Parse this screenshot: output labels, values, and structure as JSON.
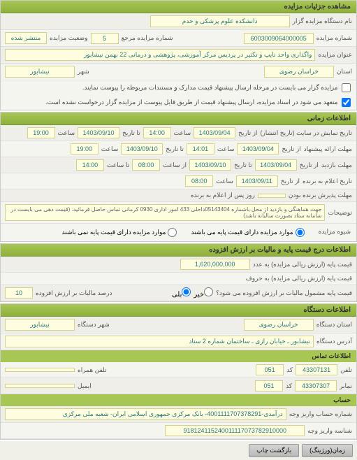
{
  "sections": {
    "details": {
      "title": "مشاهده جزئیات مزایده"
    },
    "timing": {
      "title": "اطلاعات زمانی"
    },
    "price": {
      "title": "اطلاعات درج قیمت پایه و مالیات بر ارزش افزوده"
    },
    "device": {
      "title": "اطلاعات دستگاه"
    },
    "contact": {
      "title": "اطلاعات تماس"
    },
    "account": {
      "title": "حساب"
    }
  },
  "fields": {
    "org_name_label": "نام دستگاه مزایده گزار",
    "org_name": "دانشکده علوم پزشکی و خدم",
    "auction_num_label": "شماره مزایده",
    "auction_num": "6003009064000005",
    "ref_label": "شماره مزایده مرجع",
    "ref": "5",
    "status_label": "وضعیت مزایده",
    "status": "منتشر شده",
    "auction_title_label": "عنوان مزایده",
    "auction_title": "واگذاری واحد تایپ و تکثیر در پردیس مرکز آموزشی، پژوهشی و درمانی 22 بهمن نیشابور",
    "province_label": "استان",
    "province": "خراسان رضوی",
    "city_label": "شهر",
    "city": "نیشابور",
    "chk1": "مزایده گزار می بایست در مرحله ارسال پیشنهاد قیمت مدارک و مستندات مربوطه را پیوست نمایند.",
    "chk2": "متعهد می شود در اسناد مزایده، ارسال پیشنهاد قیمت از طریق فایل پیوست از مزایده گزار درخواست نشده است.",
    "display_date_label": "تاریخ نمایش در سایت (تاریخ انتشار)",
    "from_label": "از تاریخ",
    "to_label": "تا تاریخ",
    "time_label": "ساعت",
    "from_time_label": "از ساعت",
    "to_time_label": "تا ساعت",
    "d1_from": "1403/09/04",
    "d1_ft": "14:00",
    "d1_to": "1403/09/10",
    "d1_tt": "19:00",
    "offer_deadline_label": "مهلت ارائه پیشنهاد",
    "d2_from": "1403/09/04",
    "d2_ft": "14:01",
    "d2_to": "1403/09/10",
    "d2_tt": "19:00",
    "visit_label": "مهلت بازدید",
    "d3_from": "1403/09/04",
    "d3_to": "1403/09/10",
    "d3_ft": "08:00",
    "d3_tt": "14:00",
    "winner_date_label": "تاریخ اعلام به برنده",
    "d4_from": "1403/09/11",
    "d4_ft": "08:00",
    "accept_label": "مهلت پذیرش برنده بودن",
    "accept_val": "روز پس از اعلام به برنده",
    "desc_label": "توضیحات",
    "desc": "جهت هماهنگی و بازدید از محل باشماره 05143404داخلی 433 امور اداری 0930 کرمانی تماس حاصل فرمائید. (قیمت دهی می بایست در سامانه ستاد بصورت سالیانه باشد)",
    "type_label": "شیوه مزایده",
    "radio1": "موارد مزایده دارای قیمت پایه می باشند",
    "radio2": "موارد مزایده دارای قیمت پایه نمی باشند",
    "base_price_label": "قیمت پایه (ارزش ریالی مزایده) به عدد",
    "base_price": "1,620,000,000",
    "base_price_words_label": "قیمت پایه (ارزش ریالی مزایده) به حروف",
    "vat_label": "قیمت پایه مشمول مالیات بر ارزش افزوده می شود؟",
    "vat_yes": "بلی",
    "vat_no": "خیر",
    "vat_pct_label": "درصد مالیات بر ارزش افزوده",
    "vat_pct": "10",
    "dev_province": "خراسان رضوی",
    "dev_city": "نیشابور",
    "dev_province_label": "استان دستگاه",
    "dev_city_label": "شهر دستگاه",
    "address_label": "آدرس دستگاه",
    "address": "نیشابور ـ خیابان رازی ـ ساختمان شماره 2 ستاد",
    "phone_label": "تلفن",
    "phone": "43307131",
    "phone_code": "051",
    "mobile_label": "تلفن همراه",
    "fax_label": "نمابر",
    "fax": "43307307",
    "fax_code": "051",
    "email_label": "ایمیل",
    "code_label": "کد",
    "acc_num_label": "شماره حساب واریز وجه",
    "acc_num": "درآمدی-4001111707378291- بانک مرکزی جمهوری اسلامی ایران- شعبه ملی مرکزی",
    "acc_id_label": "شناسه واریز وجه",
    "acc_id": "918124115240011117073782910000",
    "btn_print": "بازگشت چاپ",
    "btn_back": "زمان(ورژینگ)"
  }
}
